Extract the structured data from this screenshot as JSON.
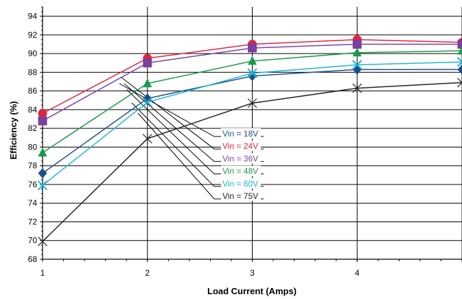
{
  "chart_data": {
    "type": "line",
    "xlabel": "Load Current (Amps)",
    "ylabel": "Efficiency (%)",
    "x": [
      1,
      2,
      3,
      4,
      5
    ],
    "xticks": [
      "1",
      "2",
      "3",
      "4",
      ""
    ],
    "xlim": [
      1,
      5
    ],
    "ylim": [
      68,
      95
    ],
    "yticks": [
      68,
      70,
      72,
      74,
      76,
      78,
      80,
      82,
      84,
      86,
      88,
      90,
      92,
      94
    ],
    "grid": true,
    "series": [
      {
        "name": "Vin = 18V",
        "color": "#1f4e8c",
        "marker": "diamond",
        "values": [
          77.2,
          85.2,
          87.6,
          88.3,
          88.3
        ]
      },
      {
        "name": "Vin = 24V",
        "color": "#e0243c",
        "marker": "circle",
        "values": [
          83.6,
          89.5,
          91.0,
          91.5,
          91.2
        ]
      },
      {
        "name": "Vin = 36V",
        "color": "#7b3fa0",
        "marker": "square",
        "values": [
          82.8,
          89.0,
          90.6,
          91.0,
          91.0
        ]
      },
      {
        "name": "Vin = 48V",
        "color": "#1a9a4a",
        "marker": "triangle",
        "values": [
          79.4,
          86.8,
          89.2,
          90.1,
          90.3
        ]
      },
      {
        "name": "Vin = 60V",
        "color": "#1eb4d6",
        "marker": "xmark",
        "values": [
          75.9,
          84.8,
          87.9,
          88.8,
          89.1
        ]
      },
      {
        "name": "Vin = 75V",
        "color": "#222222",
        "marker": "star",
        "values": [
          69.9,
          80.9,
          84.7,
          86.3,
          86.9
        ]
      }
    ]
  }
}
